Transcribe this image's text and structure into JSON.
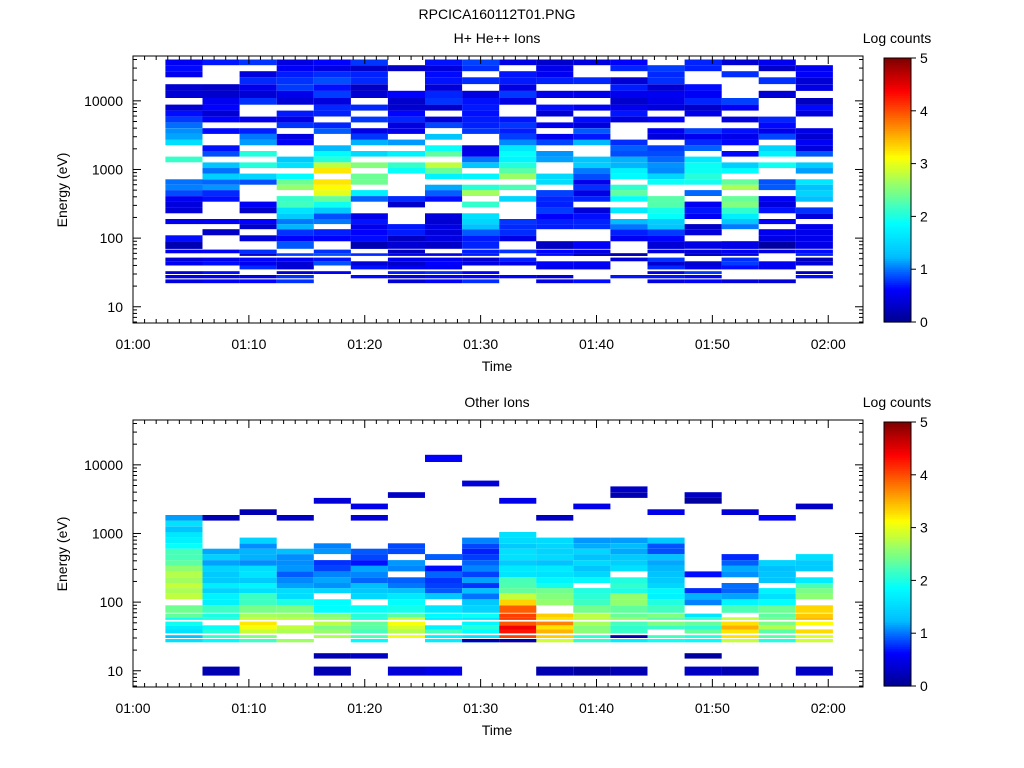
{
  "figure_title": "RPCICA160112T01.PNG",
  "colormap": {
    "stops": [
      "#00008f",
      "#0000ff",
      "#00bfff",
      "#00ffff",
      "#80ff80",
      "#ffff00",
      "#ff8000",
      "#ff0000",
      "#800000"
    ],
    "none_color": "#ffffff"
  },
  "chart_data": [
    {
      "type": "heatmap",
      "title": "H+ He++ Ions",
      "xlabel": "Time",
      "ylabel": "Energy (eV)",
      "colorbar_label": "Log counts",
      "colorbar_ticks": [
        "0",
        "1",
        "2",
        "3",
        "4",
        "5"
      ],
      "color_range": [
        0,
        5
      ],
      "y_scale": "log",
      "ylim": [
        5.8,
        45000
      ],
      "y_ticks": [
        {
          "v": 10,
          "label": "10"
        },
        {
          "v": 100,
          "label": "100"
        },
        {
          "v": 1000,
          "label": "1000"
        },
        {
          "v": 10000,
          "label": "10000"
        }
      ],
      "xlim": [
        0,
        63
      ],
      "x_ticks": [
        {
          "v": 0,
          "label": "01:00"
        },
        {
          "v": 10,
          "label": "01:10"
        },
        {
          "v": 20,
          "label": "01:20"
        },
        {
          "v": 30,
          "label": "01:30"
        },
        {
          "v": 40,
          "label": "01:40"
        },
        {
          "v": 50,
          "label": "01:50"
        },
        {
          "v": 60,
          "label": "02:00"
        }
      ],
      "time_bins": [
        [
          2.8,
          6.0
        ],
        [
          6.0,
          9.2
        ],
        [
          9.2,
          12.4
        ],
        [
          12.4,
          15.6
        ],
        [
          15.6,
          18.8
        ],
        [
          18.8,
          22.0
        ],
        [
          22.0,
          25.2
        ],
        [
          25.2,
          28.4
        ],
        [
          28.4,
          31.6
        ],
        [
          31.6,
          34.8
        ],
        [
          34.8,
          38.0
        ],
        [
          38.0,
          41.2
        ],
        [
          41.2,
          44.4
        ],
        [
          44.4,
          47.6
        ],
        [
          47.6,
          50.8
        ],
        [
          50.8,
          54.0
        ],
        [
          54.0,
          57.2
        ],
        [
          57.2,
          60.4
        ]
      ],
      "energy_bins": [
        [
          8.5,
          11.5
        ],
        [
          15,
          18
        ],
        [
          22,
          25
        ],
        [
          26,
          29
        ],
        [
          30,
          33
        ],
        [
          35,
          40
        ],
        [
          40,
          46
        ],
        [
          46,
          52
        ],
        [
          55,
          60
        ],
        [
          60,
          68
        ],
        [
          70,
          90
        ],
        [
          90,
          110
        ],
        [
          110,
          135
        ],
        [
          135,
          160
        ],
        [
          160,
          190
        ],
        [
          190,
          230
        ],
        [
          230,
          280
        ],
        [
          280,
          340
        ],
        [
          340,
          410
        ],
        [
          410,
          500
        ],
        [
          500,
          600
        ],
        [
          600,
          720
        ],
        [
          720,
          870
        ],
        [
          870,
          1050
        ],
        [
          1050,
          1270
        ],
        [
          1270,
          1540
        ],
        [
          1540,
          1860
        ],
        [
          1860,
          2250
        ],
        [
          2250,
          2720
        ],
        [
          2720,
          3300
        ],
        [
          3300,
          4000
        ],
        [
          4000,
          4850
        ],
        [
          4850,
          5900
        ],
        [
          5900,
          7200
        ],
        [
          7200,
          8800
        ],
        [
          8800,
          11000
        ],
        [
          11000,
          14000
        ],
        [
          14000,
          17500
        ],
        [
          17500,
          22000
        ],
        [
          22000,
          27000
        ],
        [
          27000,
          33000
        ],
        [
          33000,
          40000
        ]
      ],
      "profiles": [
        {
          "low": 0.55,
          "peak": 2.3,
          "center": 1500,
          "bw": 0.35
        },
        {
          "low": 0.5,
          "peak": 1.2,
          "center": 800,
          "bw": 0.4
        },
        {
          "low": 0.55,
          "peak": 2.0,
          "center": 1400,
          "bw": 0.3
        },
        {
          "low": 0.6,
          "peak": 2.4,
          "center": 500,
          "bw": 0.45
        },
        {
          "low": 0.65,
          "peak": 3.3,
          "center": 700,
          "bw": 0.4
        },
        {
          "low": 0.55,
          "peak": 2.6,
          "center": 900,
          "bw": 0.35
        },
        {
          "low": 0.5,
          "peak": 2.0,
          "center": 1200,
          "bw": 0.3
        },
        {
          "low": 0.55,
          "peak": 2.8,
          "center": 1300,
          "bw": 0.3
        },
        {
          "low": 0.6,
          "peak": 2.5,
          "center": 400,
          "bw": 0.4
        },
        {
          "low": 0.7,
          "peak": 2.4,
          "center": 800,
          "bw": 0.45
        },
        {
          "low": 0.5,
          "peak": 1.7,
          "center": 900,
          "bw": 0.35
        },
        {
          "low": 0.5,
          "peak": 1.5,
          "center": 1500,
          "bw": 0.3
        },
        {
          "low": 0.6,
          "peak": 2.2,
          "center": 500,
          "bw": 0.4
        },
        {
          "low": 0.6,
          "peak": 2.3,
          "center": 350,
          "bw": 0.4
        },
        {
          "low": 0.55,
          "peak": 2.1,
          "center": 900,
          "bw": 0.3
        },
        {
          "low": 0.6,
          "peak": 2.6,
          "center": 450,
          "bw": 0.4
        },
        {
          "low": 0.55,
          "peak": 1.9,
          "center": 1400,
          "bw": 0.3
        },
        {
          "low": 0.5,
          "peak": 1.5,
          "center": 700,
          "bw": 0.35
        }
      ],
      "energy_range": [
        20,
        40000
      ],
      "gap_rate": 0.28,
      "seed": 17,
      "extra_cells": [
        [
          0,
          10,
          0.2
        ],
        [
          10,
          10,
          0.3
        ],
        [
          11,
          10,
          0.6
        ],
        [
          13,
          10,
          0.4
        ],
        [
          15,
          10,
          0.5
        ],
        [
          5,
          10,
          0.2
        ],
        [
          16,
          10,
          0.1
        ],
        [
          11,
          8,
          0.3
        ],
        [
          12,
          8,
          0.2
        ],
        [
          14,
          8,
          0.3
        ]
      ]
    },
    {
      "type": "heatmap",
      "title": "Other Ions",
      "xlabel": "Time",
      "ylabel": "Energy (eV)",
      "colorbar_label": "Log counts",
      "colorbar_ticks": [
        "0",
        "1",
        "2",
        "3",
        "4",
        "5"
      ],
      "color_range": [
        0,
        5
      ],
      "y_scale": "log",
      "ylim": [
        5.8,
        45000
      ],
      "y_ticks": [
        {
          "v": 10,
          "label": "10"
        },
        {
          "v": 100,
          "label": "100"
        },
        {
          "v": 1000,
          "label": "1000"
        },
        {
          "v": 10000,
          "label": "10000"
        }
      ],
      "xlim": [
        0,
        63
      ],
      "x_ticks": [
        {
          "v": 0,
          "label": "01:00"
        },
        {
          "v": 10,
          "label": "01:10"
        },
        {
          "v": 20,
          "label": "01:20"
        },
        {
          "v": 30,
          "label": "01:30"
        },
        {
          "v": 40,
          "label": "01:40"
        },
        {
          "v": 50,
          "label": "01:50"
        },
        {
          "v": 60,
          "label": "02:00"
        }
      ],
      "time_bins": [
        [
          2.8,
          6.0
        ],
        [
          6.0,
          9.2
        ],
        [
          9.2,
          12.4
        ],
        [
          12.4,
          15.6
        ],
        [
          15.6,
          18.8
        ],
        [
          18.8,
          22.0
        ],
        [
          22.0,
          25.2
        ],
        [
          25.2,
          28.4
        ],
        [
          28.4,
          31.6
        ],
        [
          31.6,
          34.8
        ],
        [
          34.8,
          38.0
        ],
        [
          38.0,
          41.2
        ],
        [
          41.2,
          44.4
        ],
        [
          44.4,
          47.6
        ],
        [
          47.6,
          50.8
        ],
        [
          50.8,
          54.0
        ],
        [
          54.0,
          57.2
        ],
        [
          57.2,
          60.4
        ]
      ],
      "energy_bins": [
        [
          8.5,
          11.5
        ],
        [
          15,
          18
        ],
        [
          22,
          25
        ],
        [
          26,
          29
        ],
        [
          30,
          33
        ],
        [
          35,
          40
        ],
        [
          40,
          46
        ],
        [
          46,
          52
        ],
        [
          55,
          60
        ],
        [
          60,
          68
        ],
        [
          70,
          90
        ],
        [
          90,
          110
        ],
        [
          110,
          135
        ],
        [
          135,
          160
        ],
        [
          160,
          190
        ],
        [
          190,
          230
        ],
        [
          230,
          280
        ],
        [
          280,
          340
        ],
        [
          340,
          410
        ],
        [
          410,
          500
        ],
        [
          500,
          600
        ],
        [
          600,
          720
        ],
        [
          720,
          870
        ],
        [
          870,
          1050
        ],
        [
          1050,
          1270
        ],
        [
          1270,
          1540
        ],
        [
          1540,
          1860
        ],
        [
          1860,
          2250
        ],
        [
          2250,
          2720
        ],
        [
          2720,
          3300
        ],
        [
          3300,
          4000
        ],
        [
          4000,
          4850
        ],
        [
          4850,
          5900
        ],
        [
          5900,
          7200
        ],
        [
          7200,
          8800
        ],
        [
          8800,
          11000
        ],
        [
          11000,
          14000
        ],
        [
          14000,
          17500
        ],
        [
          17500,
          22000
        ],
        [
          22000,
          27000
        ],
        [
          27000,
          33000
        ],
        [
          33000,
          40000
        ]
      ],
      "profiles": [
        {
          "low": 1.3,
          "peak": 2.9,
          "center": 180,
          "bw": 0.55,
          "top": 2100
        },
        {
          "low": 1.2,
          "peak": 2.2,
          "center": 60,
          "bw": 0.45,
          "top": 620
        },
        {
          "low": 1.3,
          "peak": 3.0,
          "center": 50,
          "bw": 0.4,
          "top": 820
        },
        {
          "low": 1.1,
          "peak": 2.9,
          "center": 45,
          "bw": 0.4,
          "top": 620
        },
        {
          "low": 0.9,
          "peak": 2.6,
          "center": 40,
          "bw": 0.45,
          "top": 740
        },
        {
          "low": 0.9,
          "peak": 2.2,
          "center": 45,
          "bw": 0.45,
          "top": 640
        },
        {
          "low": 1.0,
          "peak": 3.0,
          "center": 40,
          "bw": 0.4,
          "top": 800
        },
        {
          "low": 0.8,
          "peak": 2.0,
          "center": 45,
          "bw": 0.4,
          "top": 520
        },
        {
          "low": 0.9,
          "peak": 1.9,
          "center": 40,
          "bw": 0.4,
          "top": 900
        },
        {
          "low": 1.4,
          "peak": 4.2,
          "center": 45,
          "bw": 0.55,
          "top": 1100
        },
        {
          "low": 1.3,
          "peak": 3.5,
          "center": 50,
          "bw": 0.5,
          "top": 900
        },
        {
          "low": 1.2,
          "peak": 2.6,
          "center": 60,
          "bw": 0.5,
          "top": 900
        },
        {
          "low": 1.3,
          "peak": 2.5,
          "center": 80,
          "bw": 0.55,
          "top": 900
        },
        {
          "low": 1.1,
          "peak": 2.4,
          "center": 50,
          "bw": 0.5,
          "top": 820
        },
        {
          "low": 0.8,
          "peak": 2.2,
          "center": 40,
          "bw": 0.35,
          "top": 260
        },
        {
          "low": 1.0,
          "peak": 3.4,
          "center": 38,
          "bw": 0.35,
          "top": 500
        },
        {
          "low": 1.2,
          "peak": 2.5,
          "center": 45,
          "bw": 0.45,
          "top": 380
        },
        {
          "low": 1.3,
          "peak": 3.3,
          "center": 55,
          "bw": 0.5,
          "top": 460
        }
      ],
      "energy_range": [
        24,
        2100
      ],
      "gap_rate": 0.1,
      "seed": 41,
      "extra_cells": [
        [
          1,
          0,
          0.2
        ],
        [
          4,
          0,
          0.2
        ],
        [
          4,
          1,
          0.2
        ],
        [
          5,
          1,
          0.3
        ],
        [
          6,
          0,
          0.4
        ],
        [
          7,
          0,
          0.5
        ],
        [
          8,
          3,
          0.2
        ],
        [
          9,
          3,
          0.2
        ],
        [
          11,
          0,
          0.1
        ],
        [
          12,
          0,
          0.2
        ],
        [
          14,
          0,
          0.3
        ],
        [
          14,
          1,
          0.1
        ],
        [
          15,
          0,
          0.2
        ],
        [
          10,
          0,
          0.2
        ],
        [
          12,
          4,
          0.2
        ],
        [
          17,
          0,
          0.3
        ],
        [
          4,
          29,
          0.4
        ],
        [
          5,
          28,
          0.5
        ],
        [
          6,
          30,
          0.3
        ],
        [
          7,
          36,
          0.6
        ],
        [
          8,
          32,
          0.4
        ],
        [
          9,
          29,
          0.5
        ],
        [
          10,
          26,
          0.3
        ],
        [
          11,
          28,
          0.5
        ],
        [
          12,
          31,
          0.3
        ],
        [
          12,
          30,
          0.2
        ],
        [
          13,
          27,
          0.5
        ],
        [
          14,
          30,
          0.3
        ],
        [
          14,
          29,
          0.1
        ],
        [
          15,
          27,
          0.4
        ],
        [
          16,
          26,
          0.6
        ],
        [
          17,
          28,
          0.3
        ],
        [
          2,
          27,
          0.2
        ],
        [
          3,
          26,
          0.3
        ],
        [
          1,
          26,
          0.2
        ],
        [
          5,
          26,
          0.4
        ]
      ]
    }
  ]
}
